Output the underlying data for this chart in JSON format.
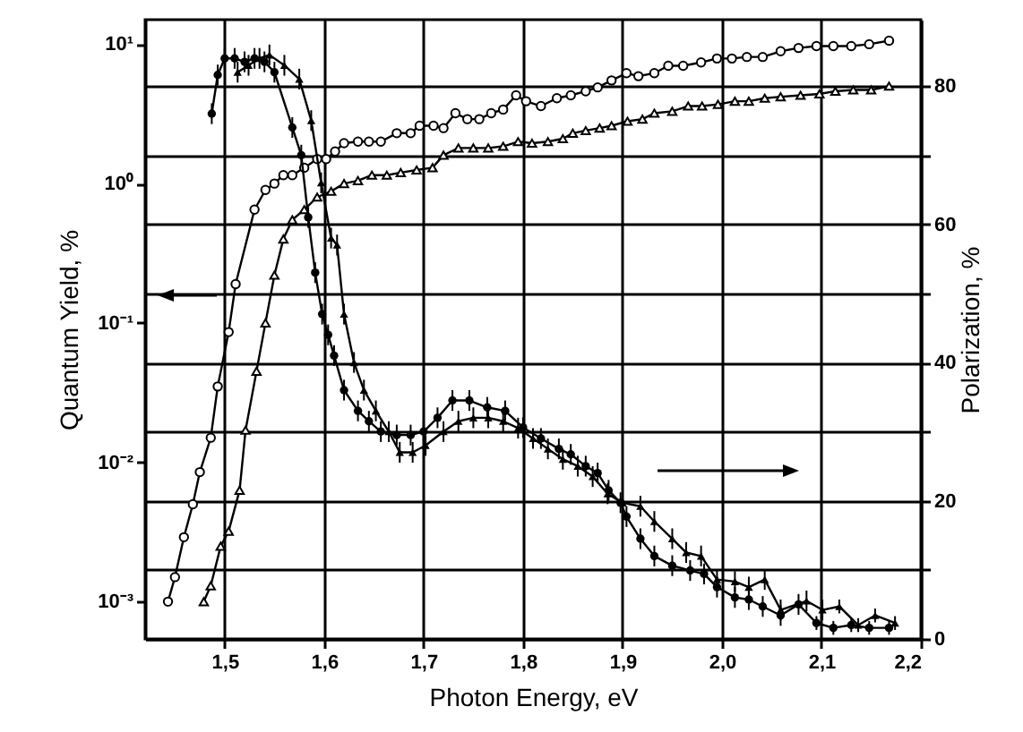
{
  "chart_data": {
    "type": "line",
    "xlabel": "Photon Energy,  eV",
    "ylabel": "Quantum Yield, %",
    "y2label": "Polarization, %",
    "xlim": [
      1.42,
      2.2
    ],
    "xticks": [
      {
        "value": 1.5,
        "label": "1,5"
      },
      {
        "value": 1.6,
        "label": "1,6"
      },
      {
        "value": 1.7,
        "label": "1,7"
      },
      {
        "value": 1.8,
        "label": "1,8"
      },
      {
        "value": 1.9,
        "label": "1,9"
      },
      {
        "value": 2.0,
        "label": "2,0"
      },
      {
        "value": 2.1,
        "label": "2,1"
      },
      {
        "value": 2.2,
        "label": "2,2"
      }
    ],
    "log": "y",
    "ylim": [
      0.00054,
      15
    ],
    "yticks": [
      {
        "value": 0.001,
        "label": "10⁻³"
      },
      {
        "value": 0.01,
        "label": "10⁻²"
      },
      {
        "value": 0.1,
        "label": "10⁻¹"
      },
      {
        "value": 1,
        "label": "10⁰"
      },
      {
        "value": 10,
        "label": "10¹"
      }
    ],
    "y2lim": [
      0,
      89.6
    ],
    "y2ticks": [
      0,
      {
        "value": 10,
        "label": null
      },
      20,
      {
        "value": 30,
        "label": null
      },
      40,
      {
        "value": 50,
        "label": null
      },
      60,
      {
        "value": 70,
        "label": null
      },
      80
    ],
    "grid": true,
    "line_style": "solid",
    "series": [
      {
        "color": "#000000",
        "marker": "circle",
        "x": [
          1.443,
          1.45,
          1.459,
          1.468,
          1.475,
          1.486,
          1.493,
          1.504,
          1.511,
          1.53,
          1.541,
          1.55,
          1.559,
          1.568,
          1.58,
          1.593,
          1.602,
          1.611,
          1.62,
          1.634,
          1.645,
          1.657,
          1.673,
          1.687,
          1.696,
          1.71,
          1.72,
          1.732,
          1.744,
          1.756,
          1.768,
          1.78,
          1.793,
          1.803,
          1.818,
          1.834,
          1.848,
          1.863,
          1.875,
          1.889,
          1.904,
          1.916,
          1.932,
          1.946,
          1.961,
          1.979,
          1.995,
          2.01,
          2.025,
          2.041,
          2.059,
          2.077,
          2.095,
          2.112,
          2.13,
          2.148,
          2.168
        ],
        "values": [
          0.001,
          0.0015,
          0.0029,
          0.005,
          0.0085,
          0.015,
          0.035,
          0.086,
          0.19,
          0.65,
          0.9,
          1.0,
          1.15,
          1.15,
          1.3,
          1.5,
          1.5,
          1.7,
          1.95,
          2.0,
          2.0,
          2.0,
          2.3,
          2.3,
          2.6,
          2.6,
          2.5,
          3.2,
          2.9,
          2.9,
          3.2,
          3.4,
          4.3,
          3.9,
          3.6,
          4.1,
          4.3,
          4.6,
          4.9,
          5.5,
          6.2,
          5.9,
          6.2,
          7,
          7,
          7.4,
          7.9,
          7.9,
          8.1,
          8.1,
          8.9,
          9.4,
          9.7,
          9.7,
          9.7,
          10,
          10.6
        ]
      },
      {
        "color": "#000000",
        "marker": "triangle",
        "x": [
          1.479,
          1.486,
          1.496,
          1.504,
          1.515,
          1.521,
          1.532,
          1.541,
          1.55,
          1.559,
          1.568,
          1.58,
          1.593,
          1.607,
          1.62,
          1.634,
          1.648,
          1.663,
          1.677,
          1.693,
          1.709,
          1.72,
          1.735,
          1.75,
          1.765,
          1.78,
          1.795,
          1.809,
          1.825,
          1.84,
          1.85,
          1.863,
          1.877,
          1.889,
          1.905,
          1.92,
          1.932,
          1.95,
          1.966,
          1.98,
          1.996,
          2.013,
          2.027,
          2.043,
          2.059,
          2.079,
          2.098,
          2.114,
          2.132,
          2.15,
          2.168
        ],
        "values": [
          0.001,
          0.0013,
          0.0025,
          0.0032,
          0.0063,
          0.017,
          0.045,
          0.1,
          0.22,
          0.4,
          0.55,
          0.65,
          0.8,
          0.88,
          1.0,
          1.05,
          1.15,
          1.15,
          1.2,
          1.25,
          1.3,
          1.6,
          1.8,
          1.8,
          1.8,
          1.85,
          2.0,
          1.95,
          2.0,
          2.1,
          2.3,
          2.4,
          2.5,
          2.6,
          2.8,
          2.9,
          3.2,
          3.3,
          3.6,
          3.6,
          3.7,
          3.9,
          3.9,
          4.1,
          4.2,
          4.3,
          4.4,
          4.6,
          4.7,
          4.7,
          5.0
        ]
      },
      {
        "color": "#000000",
        "marker": "circle",
        "axis": "y2",
        "x": [
          1.487,
          1.493,
          1.5,
          1.51,
          1.52,
          1.53,
          1.54,
          1.55,
          1.568,
          1.577,
          1.584,
          1.591,
          1.598,
          1.604,
          1.61,
          1.62,
          1.634,
          1.645,
          1.657,
          1.673,
          1.687,
          1.7,
          1.714,
          1.729,
          1.746,
          1.764,
          1.782,
          1.8,
          1.818,
          1.836,
          1.848,
          1.863,
          1.875,
          1.886,
          1.898,
          1.904,
          1.918,
          1.932,
          1.95,
          1.968,
          1.982,
          1.995,
          2.013,
          2.027,
          2.041,
          2.059,
          2.077,
          2.095,
          2.112,
          2.13,
          2.148,
          2.168
        ],
        "values": [
          76,
          81.6,
          84,
          84,
          83.5,
          84,
          83.5,
          82,
          74,
          70,
          61,
          53,
          47,
          44,
          41,
          36,
          33,
          31.5,
          30,
          29.5,
          29.5,
          30,
          32,
          34.5,
          34.5,
          33.5,
          33,
          30.6,
          29,
          27.5,
          26.7,
          25,
          24,
          21.5,
          19.7,
          17.7,
          14.5,
          12,
          10.6,
          9.9,
          9.4,
          7.5,
          6,
          5.7,
          4.7,
          3.4,
          5,
          2.3,
          1.6,
          2,
          1.6,
          1.6
        ],
        "errors": [
          1.5,
          1.5,
          1.5,
          1.5,
          1.5,
          1.5,
          1.5,
          1.5,
          1.5,
          1.5,
          1.5,
          1.5,
          1.5,
          1.5,
          1.5,
          1.5,
          1.5,
          1.5,
          1.5,
          1.5,
          1.5,
          1.5,
          1.5,
          1.5,
          1.5,
          1.5,
          1.5,
          1.5,
          1.5,
          1.5,
          1.5,
          1.5,
          1.5,
          1.5,
          1.5,
          1.5,
          1.5,
          1.5,
          1.5,
          1.5,
          1.5,
          1.5,
          1.5,
          1.5,
          1.5,
          1.5,
          1.5,
          1,
          1,
          1,
          1,
          1
        ]
      },
      {
        "color": "#000000",
        "marker": "triangle",
        "axis": "y2",
        "x": [
          1.513,
          1.524,
          1.535,
          1.545,
          1.56,
          1.575,
          1.587,
          1.597,
          1.607,
          1.613,
          1.62,
          1.63,
          1.64,
          1.652,
          1.665,
          1.676,
          1.689,
          1.702,
          1.72,
          1.735,
          1.75,
          1.765,
          1.78,
          1.795,
          1.81,
          1.825,
          1.84,
          1.855,
          1.87,
          1.885,
          1.9,
          1.918,
          1.932,
          1.95,
          1.964,
          1.979,
          1.995,
          2.013,
          2.027,
          2.043,
          2.059,
          2.085,
          2.101,
          2.118,
          2.137,
          2.154,
          2.174
        ],
        "values": [
          82,
          83,
          84,
          84.5,
          83,
          81,
          75,
          66,
          58,
          57,
          47,
          40,
          36,
          33,
          30,
          27,
          27,
          28,
          30,
          31.5,
          32,
          32,
          31.5,
          30.5,
          29,
          27.5,
          26,
          25,
          23.5,
          21,
          19.7,
          19.2,
          17,
          14.5,
          12.5,
          12,
          8.6,
          8.3,
          7.5,
          8.6,
          4.2,
          5.5,
          4.2,
          4.7,
          2,
          3.4,
          2.3
        ],
        "errors": [
          1.5,
          1.5,
          1.5,
          1.5,
          1.5,
          1.5,
          1.5,
          1.5,
          1.5,
          1.5,
          1.5,
          1.5,
          1.5,
          1.5,
          1.5,
          1.5,
          1.5,
          1.5,
          1.5,
          1.5,
          1.5,
          1.5,
          1.5,
          1.5,
          1.5,
          1.5,
          1.5,
          1.5,
          1.5,
          1.5,
          1.5,
          1.5,
          1.5,
          1.5,
          1.5,
          1.5,
          1.5,
          1.5,
          1.5,
          1.5,
          1.5,
          1.5,
          1.5,
          1,
          1,
          1,
          1
        ]
      }
    ]
  }
}
